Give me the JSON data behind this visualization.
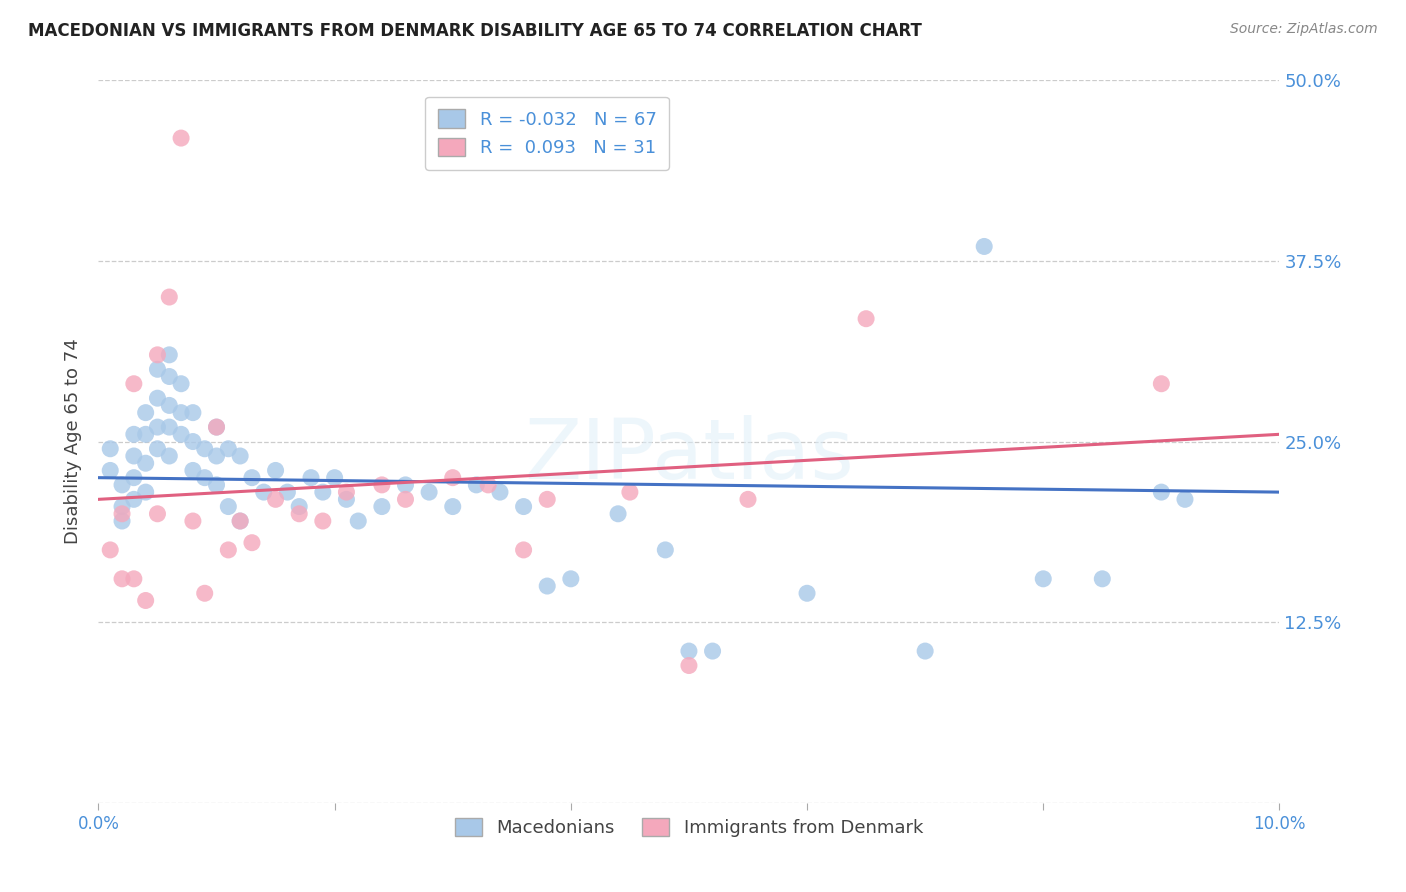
{
  "title": "MACEDONIAN VS IMMIGRANTS FROM DENMARK DISABILITY AGE 65 TO 74 CORRELATION CHART",
  "source": "Source: ZipAtlas.com",
  "ylabel": "Disability Age 65 to 74",
  "xlim": [
    0.0,
    0.1
  ],
  "ylim": [
    0.0,
    0.5
  ],
  "yticks": [
    0.0,
    0.125,
    0.25,
    0.375,
    0.5
  ],
  "ytick_labels": [
    "",
    "12.5%",
    "25.0%",
    "37.5%",
    "50.0%"
  ],
  "xticks": [
    0.0,
    0.02,
    0.04,
    0.06,
    0.08,
    0.1
  ],
  "xtick_labels": [
    "0.0%",
    "",
    "",
    "",
    "",
    "10.0%"
  ],
  "blue_r": -0.032,
  "blue_n": 67,
  "pink_r": 0.093,
  "pink_n": 31,
  "blue_color": "#a8c8e8",
  "pink_color": "#f4a8bc",
  "blue_line_color": "#4472c4",
  "pink_line_color": "#e06080",
  "legend_label_blue": "Macedonians",
  "legend_label_pink": "Immigrants from Denmark",
  "watermark": "ZIPatlas",
  "blue_points_x": [
    0.001,
    0.001,
    0.002,
    0.002,
    0.002,
    0.003,
    0.003,
    0.003,
    0.003,
    0.004,
    0.004,
    0.004,
    0.004,
    0.005,
    0.005,
    0.005,
    0.005,
    0.006,
    0.006,
    0.006,
    0.006,
    0.006,
    0.007,
    0.007,
    0.007,
    0.008,
    0.008,
    0.008,
    0.009,
    0.009,
    0.01,
    0.01,
    0.01,
    0.011,
    0.011,
    0.012,
    0.012,
    0.013,
    0.014,
    0.015,
    0.016,
    0.017,
    0.018,
    0.019,
    0.02,
    0.021,
    0.022,
    0.024,
    0.026,
    0.028,
    0.03,
    0.032,
    0.034,
    0.036,
    0.038,
    0.04,
    0.044,
    0.048,
    0.05,
    0.052,
    0.06,
    0.07,
    0.075,
    0.08,
    0.085,
    0.09,
    0.092
  ],
  "blue_points_y": [
    0.23,
    0.245,
    0.22,
    0.205,
    0.195,
    0.255,
    0.24,
    0.225,
    0.21,
    0.27,
    0.255,
    0.235,
    0.215,
    0.3,
    0.28,
    0.26,
    0.245,
    0.31,
    0.295,
    0.275,
    0.26,
    0.24,
    0.29,
    0.27,
    0.255,
    0.27,
    0.25,
    0.23,
    0.245,
    0.225,
    0.26,
    0.24,
    0.22,
    0.245,
    0.205,
    0.24,
    0.195,
    0.225,
    0.215,
    0.23,
    0.215,
    0.205,
    0.225,
    0.215,
    0.225,
    0.21,
    0.195,
    0.205,
    0.22,
    0.215,
    0.205,
    0.22,
    0.215,
    0.205,
    0.15,
    0.155,
    0.2,
    0.175,
    0.105,
    0.105,
    0.145,
    0.105,
    0.385,
    0.155,
    0.155,
    0.215,
    0.21
  ],
  "pink_points_x": [
    0.001,
    0.002,
    0.002,
    0.003,
    0.003,
    0.004,
    0.005,
    0.005,
    0.006,
    0.007,
    0.008,
    0.009,
    0.01,
    0.011,
    0.012,
    0.013,
    0.015,
    0.017,
    0.019,
    0.021,
    0.024,
    0.026,
    0.03,
    0.033,
    0.036,
    0.038,
    0.045,
    0.05,
    0.055,
    0.065,
    0.09
  ],
  "pink_points_y": [
    0.175,
    0.2,
    0.155,
    0.29,
    0.155,
    0.14,
    0.31,
    0.2,
    0.35,
    0.46,
    0.195,
    0.145,
    0.26,
    0.175,
    0.195,
    0.18,
    0.21,
    0.2,
    0.195,
    0.215,
    0.22,
    0.21,
    0.225,
    0.22,
    0.175,
    0.21,
    0.215,
    0.095,
    0.21,
    0.335,
    0.29
  ],
  "blue_line_x0": 0.0,
  "blue_line_x1": 0.1,
  "blue_line_y0": 0.225,
  "blue_line_y1": 0.215,
  "pink_line_x0": 0.0,
  "pink_line_x1": 0.1,
  "pink_line_y0": 0.21,
  "pink_line_y1": 0.255
}
